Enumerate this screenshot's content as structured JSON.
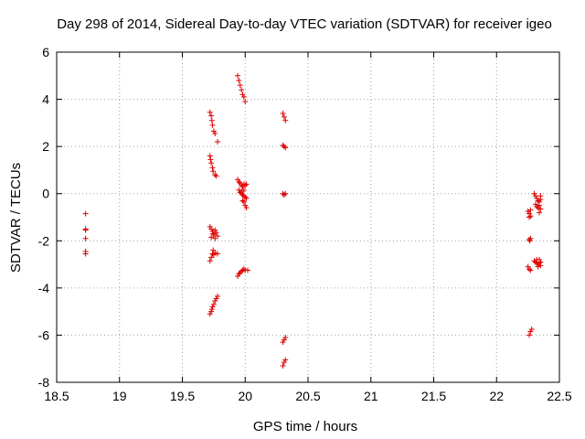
{
  "chart_data": {
    "type": "scatter",
    "title": "Day 298 of 2014, Sidereal Day-to-day VTEC variation (SDTVAR) for receiver igeo",
    "xlabel": "GPS time / hours",
    "ylabel": "SDTVAR / TECUs",
    "xlim": [
      18.5,
      22.5
    ],
    "ylim": [
      -8,
      6
    ],
    "xticks": [
      18.5,
      19,
      19.5,
      20,
      20.5,
      21,
      21.5,
      22,
      22.5
    ],
    "xtick_labels": [
      "18.5",
      "19",
      "19.5",
      "20",
      "20.5",
      "21",
      "21.5",
      "22",
      "22.5"
    ],
    "yticks": [
      -8,
      -6,
      -4,
      -2,
      0,
      2,
      4,
      6
    ],
    "ytick_labels": [
      "-8",
      "-6",
      "-4",
      "-2",
      "0",
      "2",
      "4",
      "6"
    ],
    "grid": true,
    "marker": "+",
    "color": "#dd0000",
    "series": [
      {
        "name": "SDTVAR",
        "points": [
          [
            18.73,
            -0.85
          ],
          [
            18.73,
            -1.5
          ],
          [
            18.73,
            -1.55
          ],
          [
            18.73,
            -1.9
          ],
          [
            18.73,
            -2.45
          ],
          [
            18.73,
            -2.55
          ],
          [
            19.72,
            3.45
          ],
          [
            19.73,
            3.3
          ],
          [
            19.735,
            3.1
          ],
          [
            19.74,
            2.9
          ],
          [
            19.75,
            2.65
          ],
          [
            19.76,
            2.55
          ],
          [
            19.78,
            2.2
          ],
          [
            19.72,
            1.6
          ],
          [
            19.725,
            1.45
          ],
          [
            19.73,
            1.3
          ],
          [
            19.74,
            1.1
          ],
          [
            19.745,
            0.95
          ],
          [
            19.76,
            0.8
          ],
          [
            19.77,
            0.75
          ],
          [
            19.72,
            -1.4
          ],
          [
            19.73,
            -1.5
          ],
          [
            19.74,
            -1.6
          ],
          [
            19.745,
            -1.7
          ],
          [
            19.75,
            -1.75
          ],
          [
            19.76,
            -1.55
          ],
          [
            19.77,
            -1.65
          ],
          [
            19.78,
            -1.8
          ],
          [
            19.73,
            -1.85
          ],
          [
            19.76,
            -1.9
          ],
          [
            19.72,
            -2.85
          ],
          [
            19.73,
            -2.7
          ],
          [
            19.74,
            -2.55
          ],
          [
            19.745,
            -2.4
          ],
          [
            19.75,
            -2.6
          ],
          [
            19.76,
            -2.5
          ],
          [
            19.78,
            -2.55
          ],
          [
            19.72,
            -5.1
          ],
          [
            19.73,
            -5.0
          ],
          [
            19.735,
            -4.9
          ],
          [
            19.74,
            -4.8
          ],
          [
            19.75,
            -4.7
          ],
          [
            19.76,
            -4.55
          ],
          [
            19.77,
            -4.45
          ],
          [
            19.78,
            -4.35
          ],
          [
            19.94,
            5.0
          ],
          [
            19.95,
            4.8
          ],
          [
            19.96,
            4.6
          ],
          [
            19.97,
            4.4
          ],
          [
            19.98,
            4.2
          ],
          [
            19.99,
            4.1
          ],
          [
            20.0,
            3.9
          ],
          [
            19.94,
            0.6
          ],
          [
            19.95,
            0.5
          ],
          [
            19.96,
            0.45
          ],
          [
            19.97,
            0.35
          ],
          [
            19.98,
            0.3
          ],
          [
            19.99,
            0.4
          ],
          [
            20.0,
            0.35
          ],
          [
            20.01,
            0.4
          ],
          [
            19.95,
            0.15
          ],
          [
            19.96,
            0.05
          ],
          [
            19.97,
            0.0
          ],
          [
            19.98,
            -0.05
          ],
          [
            19.99,
            -0.1
          ],
          [
            20.0,
            -0.15
          ],
          [
            20.01,
            -0.2
          ],
          [
            19.97,
            0.1
          ],
          [
            19.98,
            -0.3
          ],
          [
            19.99,
            -0.35
          ],
          [
            20.0,
            -0.5
          ],
          [
            20.01,
            -0.6
          ],
          [
            19.99,
            0.15
          ],
          [
            19.94,
            -3.5
          ],
          [
            19.95,
            -3.4
          ],
          [
            19.96,
            -3.35
          ],
          [
            19.97,
            -3.3
          ],
          [
            19.98,
            -3.25
          ],
          [
            19.99,
            -3.2
          ],
          [
            20.0,
            -3.25
          ],
          [
            20.02,
            -3.25
          ],
          [
            20.3,
            3.4
          ],
          [
            20.31,
            3.25
          ],
          [
            20.32,
            3.1
          ],
          [
            20.3,
            2.05
          ],
          [
            20.31,
            2.0
          ],
          [
            20.32,
            1.95
          ],
          [
            20.3,
            0.0
          ],
          [
            20.31,
            -0.05
          ],
          [
            20.32,
            0.0
          ],
          [
            20.3,
            -6.3
          ],
          [
            20.31,
            -6.2
          ],
          [
            20.32,
            -6.1
          ],
          [
            20.3,
            -7.3
          ],
          [
            20.31,
            -7.15
          ],
          [
            20.32,
            -7.05
          ],
          [
            22.25,
            -0.75
          ],
          [
            22.26,
            -0.85
          ],
          [
            22.27,
            -0.95
          ],
          [
            22.26,
            -1.0
          ],
          [
            22.27,
            -0.7
          ],
          [
            22.26,
            -1.95
          ],
          [
            22.27,
            -1.9
          ],
          [
            22.265,
            -2.0
          ],
          [
            22.25,
            -3.1
          ],
          [
            22.26,
            -3.2
          ],
          [
            22.27,
            -3.25
          ],
          [
            22.26,
            -6.0
          ],
          [
            22.27,
            -5.85
          ],
          [
            22.28,
            -5.75
          ],
          [
            22.3,
            0.0
          ],
          [
            22.31,
            -0.1
          ],
          [
            22.32,
            -0.2
          ],
          [
            22.33,
            -0.3
          ],
          [
            22.34,
            -0.35
          ],
          [
            22.35,
            -0.25
          ],
          [
            22.34,
            -0.5
          ],
          [
            22.33,
            -0.6
          ],
          [
            22.35,
            -0.65
          ],
          [
            22.34,
            -0.8
          ],
          [
            22.31,
            -0.45
          ],
          [
            22.32,
            -0.55
          ],
          [
            22.35,
            -0.1
          ],
          [
            22.3,
            -2.85
          ],
          [
            22.31,
            -2.9
          ],
          [
            22.32,
            -2.95
          ],
          [
            22.33,
            -3.0
          ],
          [
            22.34,
            -2.8
          ],
          [
            22.35,
            -2.9
          ],
          [
            22.33,
            -3.1
          ],
          [
            22.35,
            -3.05
          ],
          [
            22.34,
            -2.95
          ],
          [
            22.32,
            -2.8
          ]
        ]
      }
    ]
  }
}
